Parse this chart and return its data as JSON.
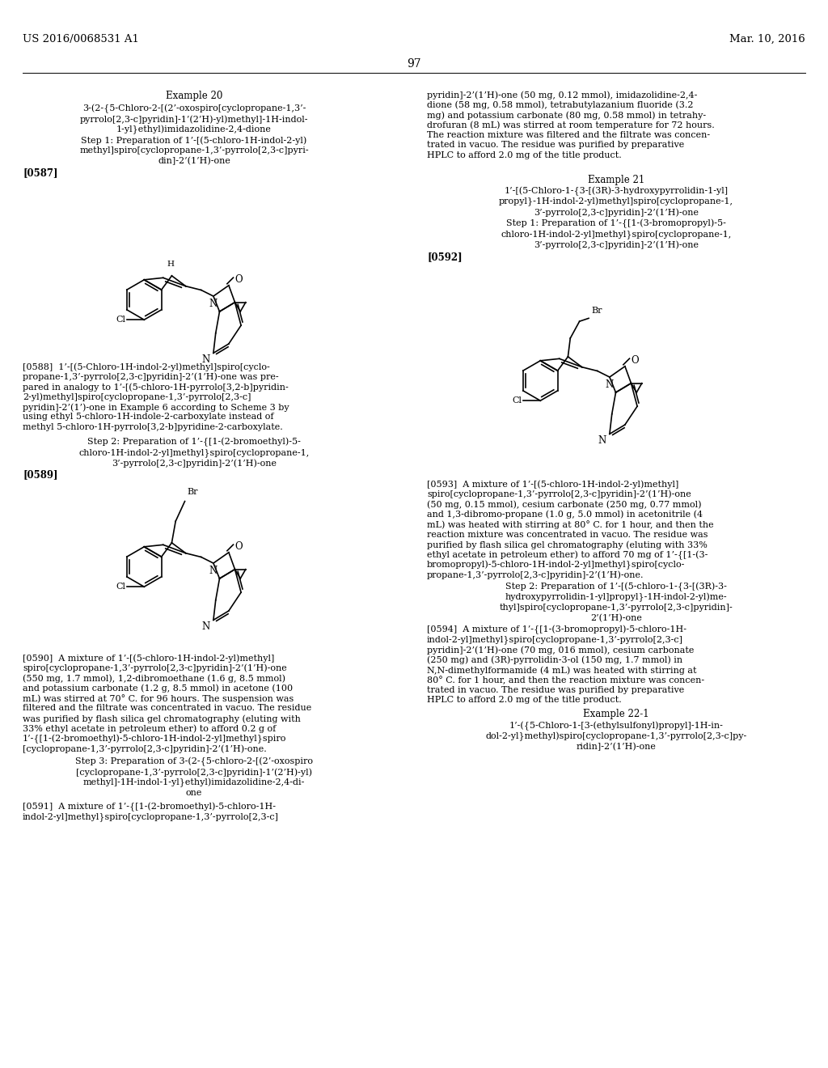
{
  "background_color": "#ffffff",
  "header_left": "US 2016/0068531 A1",
  "header_right": "Mar. 10, 2016",
  "page_number": "97"
}
